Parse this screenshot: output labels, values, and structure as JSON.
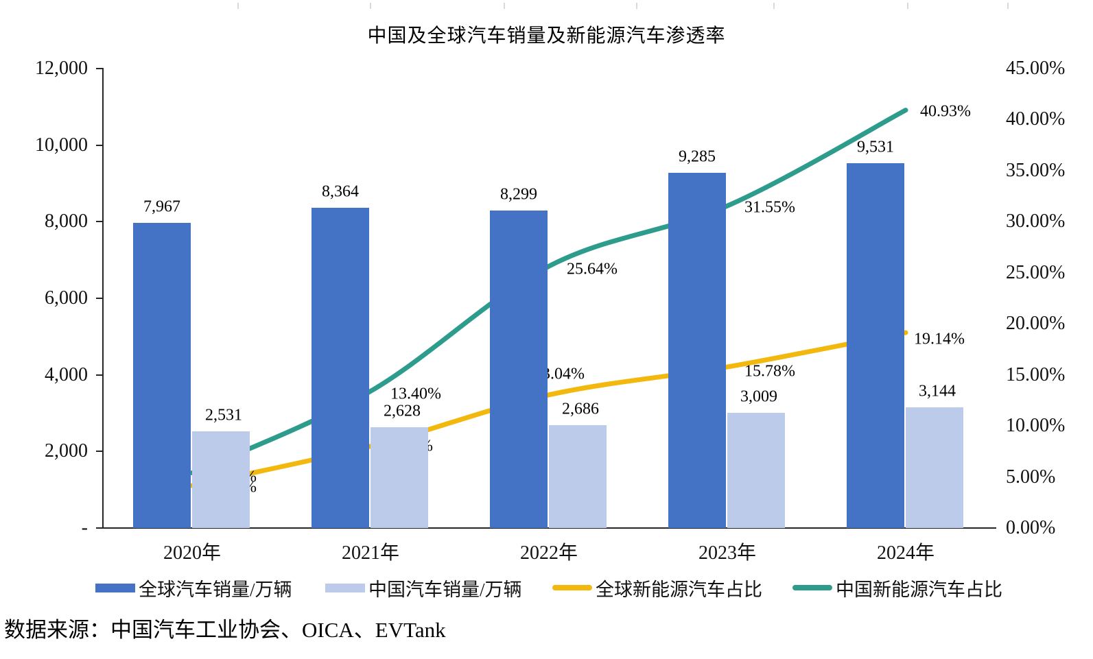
{
  "chart_data": {
    "type": "combo bar+line, dual axis",
    "title": "中国及全球汽车销量及新能源汽车渗透率",
    "categories": [
      "2020年",
      "2021年",
      "2022年",
      "2023年",
      "2024年"
    ],
    "bar_series": [
      {
        "name": "全球汽车销量/万辆",
        "color": "#4472C4",
        "values": [
          7967,
          8364,
          8299,
          9285,
          9531
        ],
        "labels": [
          "7,967",
          "8,364",
          "8,299",
          "9,285",
          "9,531"
        ]
      },
      {
        "name": "中国汽车销量/万辆",
        "color": "#BCCBEA",
        "values": [
          2531,
          2628,
          2686,
          3009,
          3144
        ],
        "labels": [
          "2,531",
          "2,628",
          "2,686",
          "3,009",
          "3,144"
        ]
      }
    ],
    "line_series": [
      {
        "name": "全球新能源汽车占比",
        "color": "#F2B80D",
        "values": [
          4.15,
          8.01,
          13.04,
          15.78,
          19.14
        ],
        "labels": [
          "4.15%",
          "8.01%",
          "13.04%",
          "15.78%",
          "19.14%"
        ]
      },
      {
        "name": "中国新能源汽车占比",
        "color": "#2E9C8D",
        "values": [
          5.4,
          13.4,
          25.64,
          31.55,
          40.93
        ],
        "labels": [
          "5.40%",
          "13.40%",
          "25.64%",
          "31.55%",
          "40.93%"
        ]
      }
    ],
    "left_axis": {
      "min": 0,
      "max": 12000,
      "tick_labels": [
        "12,000",
        "10,000",
        "8,000",
        "6,000",
        "4,000",
        "2,000",
        "-"
      ]
    },
    "right_axis": {
      "min": 0,
      "max": 45,
      "tick_labels": [
        "45.00%",
        "40.00%",
        "35.00%",
        "30.00%",
        "25.00%",
        "20.00%",
        "15.00%",
        "10.00%",
        "5.00%",
        "0.00%"
      ]
    },
    "grid": "off",
    "legend_position": "bottom",
    "source": "数据来源：中国汽车工业协会、OICA、EVTank"
  }
}
